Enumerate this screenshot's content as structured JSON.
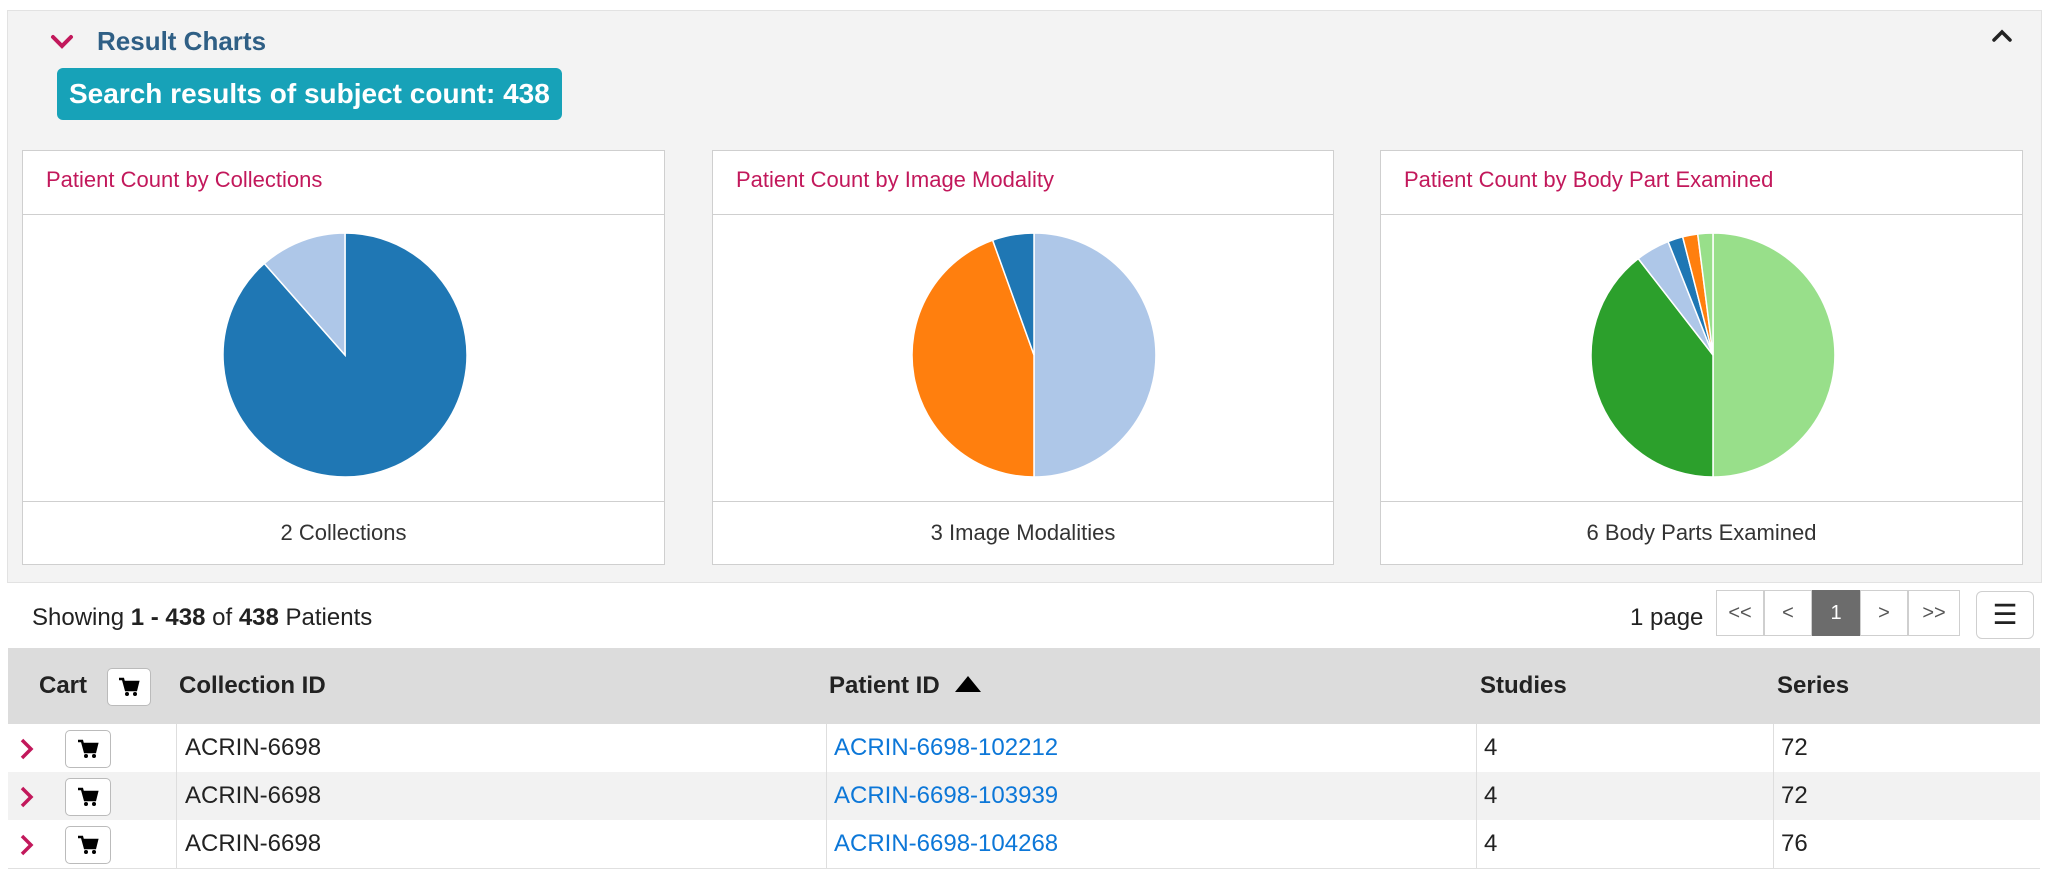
{
  "header": {
    "title": "Result Charts"
  },
  "summary": {
    "label": "Search results of subject count: 438"
  },
  "charts": [
    {
      "title": "Patient Count by Collections",
      "footer": "2 Collections"
    },
    {
      "title": "Patient Count by Image Modality",
      "footer": "3 Image Modalities"
    },
    {
      "title": "Patient Count by Body Part Examined",
      "footer": "6 Body Parts Examined"
    }
  ],
  "chart_data": [
    {
      "type": "pie",
      "title": "Patient Count by Collections",
      "slices": [
        {
          "value": 0.885,
          "color": "#1f77b4"
        },
        {
          "value": 0.115,
          "color": "#aec7e8"
        }
      ]
    },
    {
      "type": "pie",
      "title": "Patient Count by Image Modality",
      "slices": [
        {
          "value": 0.5,
          "color": "#aec7e8"
        },
        {
          "value": 0.445,
          "color": "#ff7f0e"
        },
        {
          "value": 0.055,
          "color": "#1f77b4"
        }
      ]
    },
    {
      "type": "pie",
      "title": "Patient Count by Body Part Examined",
      "slices": [
        {
          "value": 0.5,
          "color": "#98df8a"
        },
        {
          "value": 0.395,
          "color": "#2ca02c"
        },
        {
          "value": 0.045,
          "color": "#aec7e8"
        },
        {
          "value": 0.02,
          "color": "#1f77b4"
        },
        {
          "value": 0.02,
          "color": "#ff7f0e"
        },
        {
          "value": 0.02,
          "color": "#98df8a"
        }
      ]
    }
  ],
  "results": {
    "showing_prefix": "Showing",
    "range": "1 - 438",
    "of": "of",
    "total": "438",
    "unit": "Patients",
    "pages_label": "1 page",
    "pager": {
      "first": "<<",
      "prev": "<",
      "current": "1",
      "next": ">",
      "last": ">>"
    },
    "menu": "☰"
  },
  "table": {
    "headers": {
      "cart": "Cart",
      "collection": "Collection ID",
      "patient": "Patient ID",
      "studies": "Studies",
      "series": "Series"
    },
    "rows": [
      {
        "collection": "ACRIN-6698",
        "patient": "ACRIN-6698-102212",
        "studies": "4",
        "series": "72"
      },
      {
        "collection": "ACRIN-6698",
        "patient": "ACRIN-6698-103939",
        "studies": "4",
        "series": "72"
      },
      {
        "collection": "ACRIN-6698",
        "patient": "ACRIN-6698-104268",
        "studies": "4",
        "series": "76"
      }
    ]
  },
  "colors": {
    "accent_title": "#c2185b",
    "badge": "#17a2b8",
    "link": "#0c77d8"
  }
}
